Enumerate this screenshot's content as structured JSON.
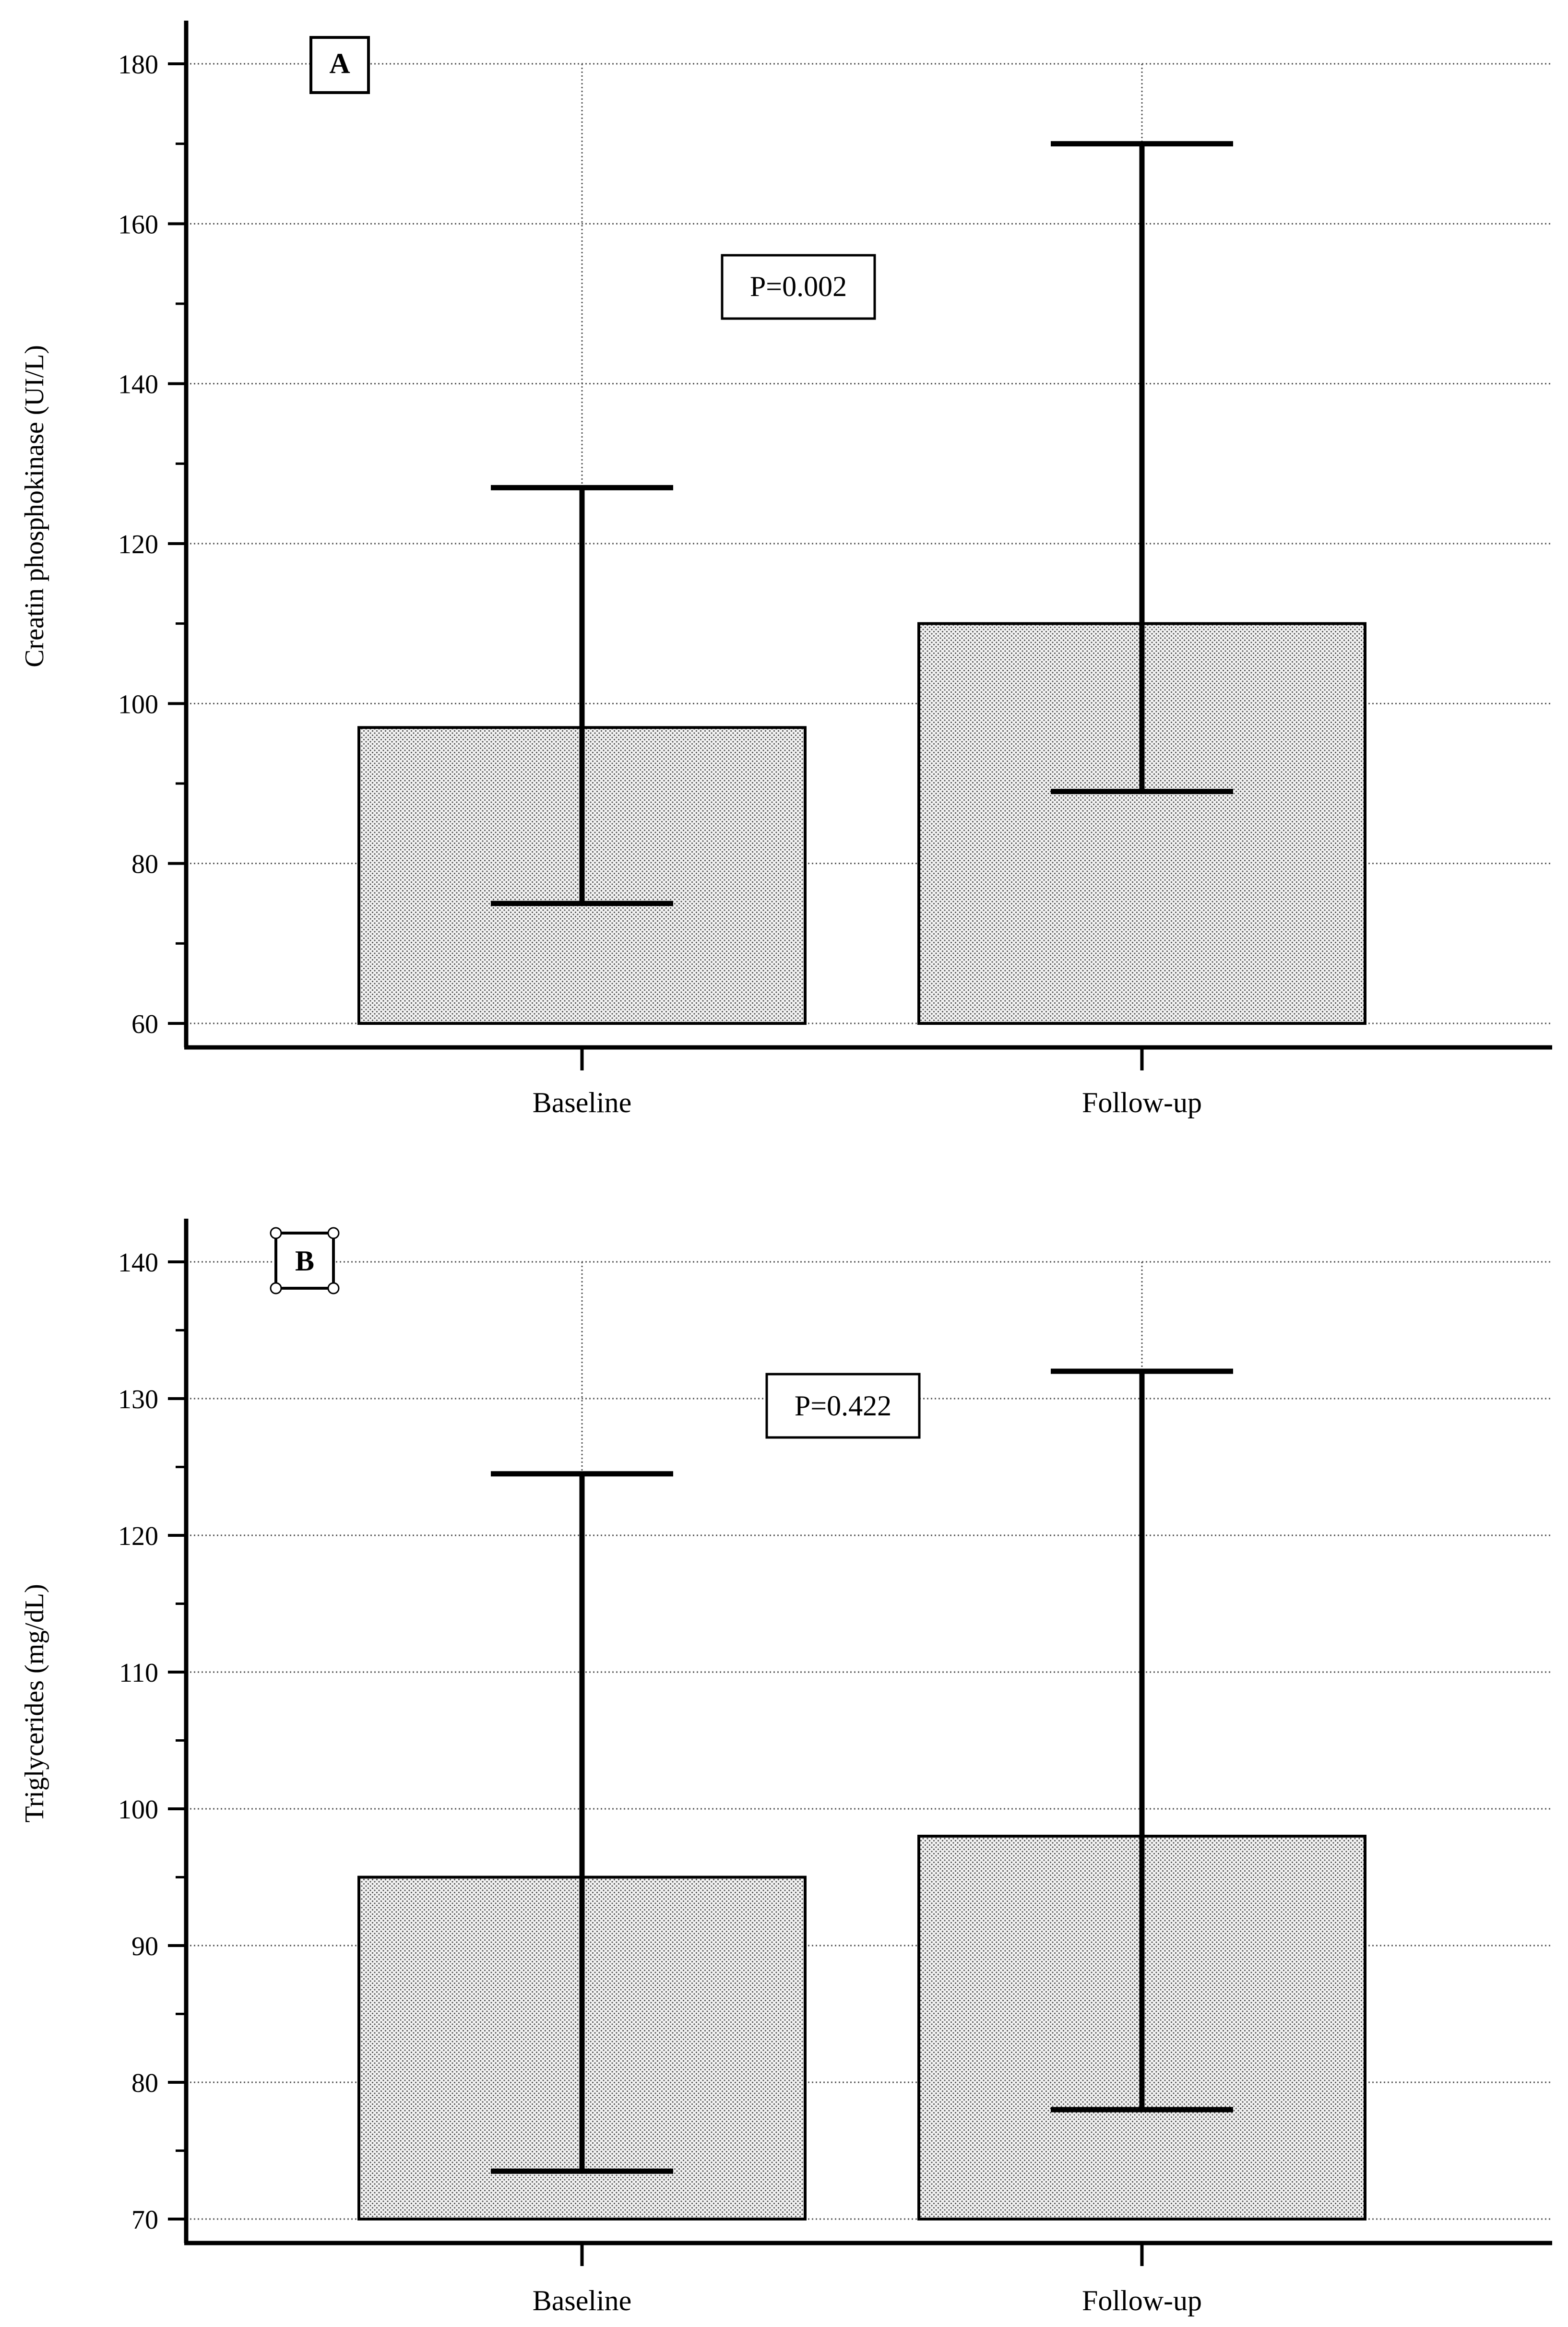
{
  "chart_data": [
    {
      "type": "bar",
      "panel": "A",
      "p_value_label": "P=0.002",
      "title": "",
      "xlabel": "",
      "ylabel": "Creatin phosphokinase (UI/L)",
      "ylim": [
        60,
        180
      ],
      "ytick_step": 20,
      "yminor_step": 10,
      "yticks": [
        "60",
        "80",
        "100",
        "120",
        "140",
        "160",
        "180"
      ],
      "categories": [
        "Baseline",
        "Follow-up"
      ],
      "values": [
        97,
        110
      ],
      "error_low": [
        75,
        89
      ],
      "error_high": [
        127,
        170
      ],
      "grid": true
    },
    {
      "type": "bar",
      "panel": "B",
      "p_value_label": "P=0.422",
      "title": "",
      "xlabel": "",
      "ylabel": "Triglycerides (mg/dL)",
      "ylim": [
        70,
        140
      ],
      "ytick_step": 10,
      "yminor_step": 5,
      "yticks": [
        "70",
        "80",
        "90",
        "100",
        "110",
        "120",
        "130",
        "140"
      ],
      "categories": [
        "Baseline",
        "Follow-up"
      ],
      "values": [
        95,
        98
      ],
      "error_low": [
        73.5,
        78
      ],
      "error_high": [
        124.5,
        132
      ],
      "grid": true
    }
  ],
  "colors": {
    "ink": "#000000",
    "bar_fill": "#f2f2f2",
    "dot": "#555555",
    "grid": "#555555"
  }
}
